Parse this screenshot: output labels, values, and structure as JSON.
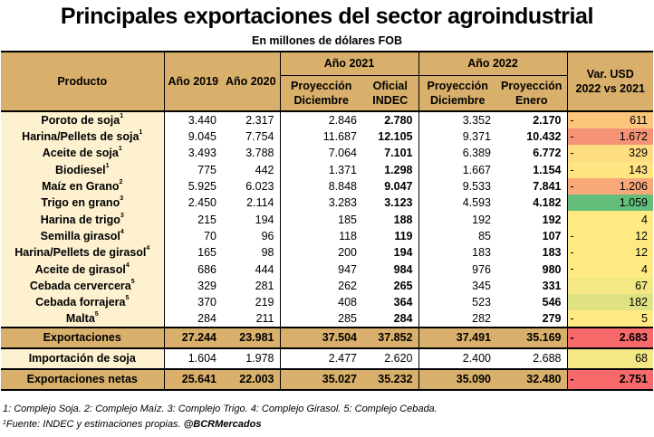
{
  "title": "Principales exportaciones del sector agroindustrial",
  "subtitle": "En millones de dólares FOB",
  "headers": {
    "producto": "Producto",
    "a2019": "Año 2019",
    "a2020": "Año 2020",
    "a2021": "Año 2021",
    "a2022": "Año 2022",
    "proy1": "Proyección",
    "proy1b": "Diciembre",
    "oficial": "Oficial",
    "oficialb": "INDEC",
    "proy2": "Proyección",
    "proy2b": "Diciembre",
    "proy3": "Proyección",
    "proy3b": "Enero",
    "var": "Var. USD",
    "varb": "2022 vs 2021"
  },
  "rows": [
    {
      "producto": "Poroto de soja",
      "sup": "1",
      "y2019": "3.440",
      "y2020": "2.317",
      "p21": "2.846",
      "of21": "2.780",
      "p22d": "3.352",
      "p22e": "2.170",
      "sign": "-",
      "var": "611",
      "color": "#fcc57a"
    },
    {
      "producto": "Harina/Pellets de soja",
      "sup": "1",
      "y2019": "9.045",
      "y2020": "7.754",
      "p21": "11.687",
      "of21": "12.105",
      "p22d": "9.371",
      "p22e": "10.432",
      "sign": "-",
      "var": "1.672",
      "color": "#f59377"
    },
    {
      "producto": "Aceite de soja",
      "sup": "1",
      "y2019": "3.493",
      "y2020": "3.788",
      "p21": "7.064",
      "of21": "7.101",
      "p22d": "6.389",
      "p22e": "6.772",
      "sign": "-",
      "var": "329",
      "color": "#fedc81"
    },
    {
      "producto": "Biodiesel",
      "sup": "1",
      "y2019": "775",
      "y2020": "442",
      "p21": "1.371",
      "of21": "1.298",
      "p22d": "1.667",
      "p22e": "1.154",
      "sign": "-",
      "var": "143",
      "color": "#fee582"
    },
    {
      "producto": "Maíz en Grano",
      "sup": "2",
      "y2019": "5.925",
      "y2020": "6.023",
      "p21": "8.848",
      "of21": "9.047",
      "p22d": "9.533",
      "p22e": "7.841",
      "sign": "-",
      "var": "1.206",
      "color": "#f8a97a"
    },
    {
      "producto": "Trigo en grano",
      "sup": "3",
      "y2019": "2.450",
      "y2020": "2.114",
      "p21": "3.283",
      "of21": "3.123",
      "p22d": "4.593",
      "p22e": "4.182",
      "sign": "",
      "var": "1.059",
      "color": "#63be7b"
    },
    {
      "producto": "Harina de trigo",
      "sup": "3",
      "y2019": "215",
      "y2020": "194",
      "p21": "185",
      "of21": "188",
      "p22d": "192",
      "p22e": "192",
      "sign": "",
      "var": "4",
      "color": "#ffea84"
    },
    {
      "producto": "Semilla girasol",
      "sup": "4",
      "y2019": "70",
      "y2020": "96",
      "p21": "118",
      "of21": "119",
      "p22d": "85",
      "p22e": "107",
      "sign": "-",
      "var": "12",
      "color": "#feea83"
    },
    {
      "producto": "Harina/Pellets de girasol",
      "sup": "4",
      "y2019": "165",
      "y2020": "98",
      "p21": "200",
      "of21": "194",
      "p22d": "183",
      "p22e": "183",
      "sign": "-",
      "var": "12",
      "color": "#feea83"
    },
    {
      "producto": "Aceite de girasol",
      "sup": "4",
      "y2019": "686",
      "y2020": "444",
      "p21": "947",
      "of21": "984",
      "p22d": "976",
      "p22e": "980",
      "sign": "-",
      "var": "4",
      "color": "#ffea84"
    },
    {
      "producto": "Cebada cervercera",
      "sup": "5",
      "y2019": "329",
      "y2020": "281",
      "p21": "262",
      "of21": "265",
      "p22d": "345",
      "p22e": "331",
      "sign": "",
      "var": "67",
      "color": "#f4e884"
    },
    {
      "producto": "Cebada forrajera",
      "sup": "5",
      "y2019": "370",
      "y2020": "219",
      "p21": "408",
      "of21": "364",
      "p22d": "523",
      "p22e": "546",
      "sign": "",
      "var": "182",
      "color": "#dfe283"
    },
    {
      "producto": "Malta",
      "sup": "5",
      "y2019": "284",
      "y2020": "211",
      "p21": "285",
      "of21": "284",
      "p22d": "282",
      "p22e": "279",
      "sign": "-",
      "var": "5",
      "color": "#ffea84"
    }
  ],
  "totals": {
    "producto": "Exportaciones",
    "y2019": "27.244",
    "y2020": "23.981",
    "p21": "37.504",
    "of21": "37.852",
    "p22d": "37.491",
    "p22e": "35.169",
    "sign": "-",
    "var": "2.683",
    "color": "#f8696b"
  },
  "import": {
    "producto": "Importación de soja",
    "y2019": "1.604",
    "y2020": "1.978",
    "p21": "2.477",
    "of21": "2.620",
    "p22d": "2.400",
    "p22e": "2.688",
    "sign": "",
    "var": "68",
    "color": "#f4e884"
  },
  "net": {
    "producto": "Exportaciones netas",
    "y2019": "25.641",
    "y2020": "22.003",
    "p21": "35.027",
    "of21": "35.232",
    "p22d": "35.090",
    "p22e": "32.480",
    "sign": "-",
    "var": "2.751",
    "color": "#f8696b"
  },
  "footnote1": "1: Complejo Soja.   2: Complejo Maíz.   3: Complejo Trigo.   4: Complejo Girasol.  5: Complejo Cebada.",
  "footnote2_sup": "1",
  "footnote2": "Fuente: INDEC y estimaciones propias.",
  "footnote2_handle": "@BCRMercados"
}
